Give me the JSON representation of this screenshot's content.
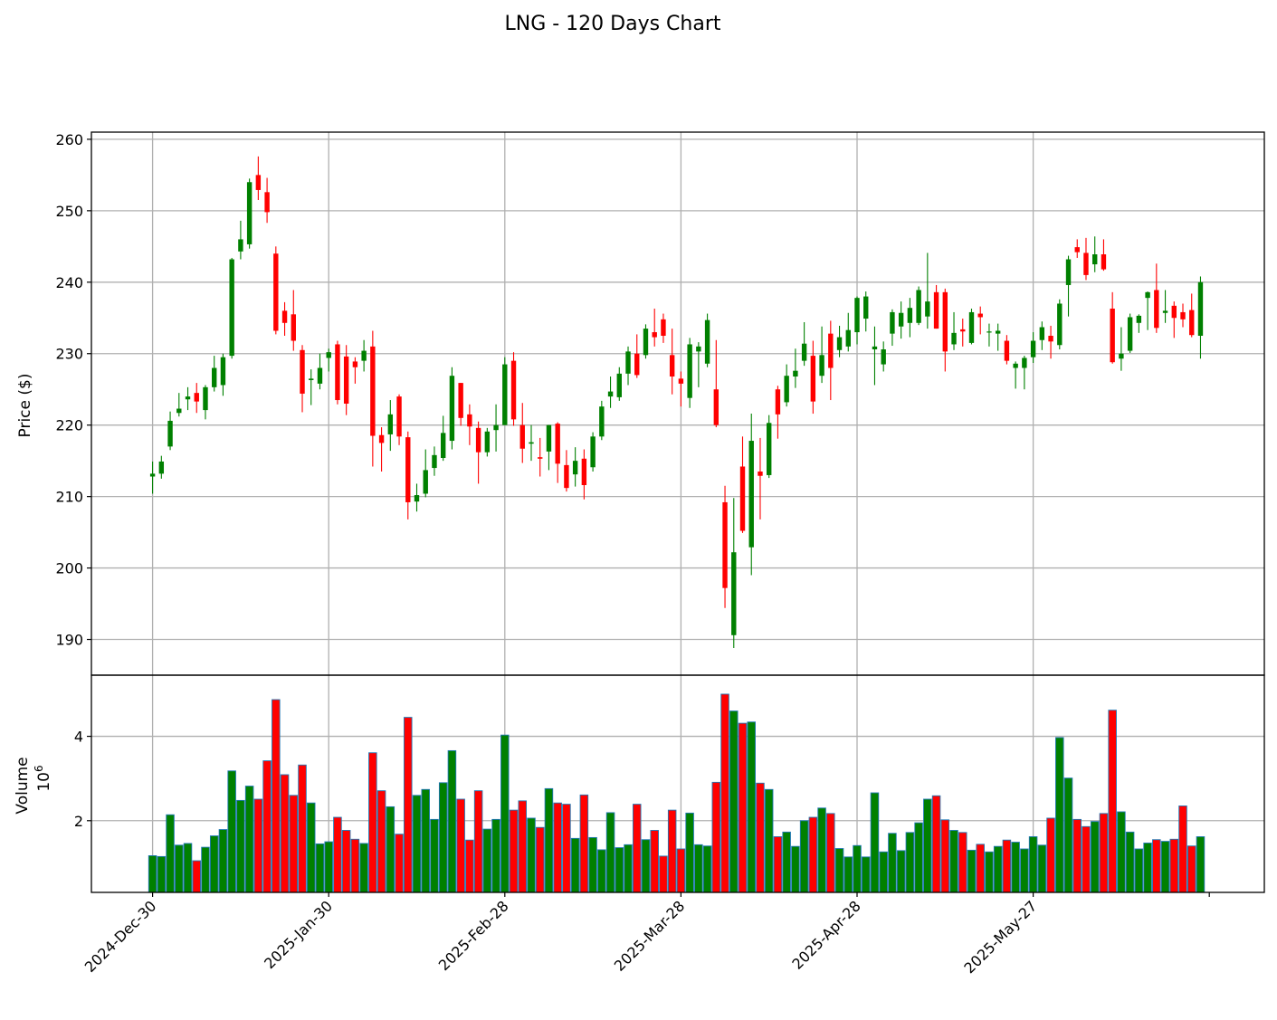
{
  "chart_data": {
    "type": "candlestick",
    "title": "LNG - 120 Days Chart",
    "colors": {
      "up": "#008000",
      "down": "#ff0000",
      "volume_edge": "#1f77b4"
    },
    "grid": true,
    "price_panel": {
      "ylabel": "Price ($)",
      "ylim": [
        185,
        261
      ],
      "yticks": [
        190,
        200,
        210,
        220,
        230,
        240,
        250,
        260
      ]
    },
    "volume_panel": {
      "ylabel": "Volume",
      "scale_label": "10^6",
      "ylim": [
        0.3,
        5.45
      ],
      "yticks": [
        2,
        4
      ]
    },
    "x_ticks": [
      {
        "index": 0,
        "label": "2024-Dec-30"
      },
      {
        "index": 20,
        "label": "2025-Jan-30"
      },
      {
        "index": 40,
        "label": "2025-Feb-28"
      },
      {
        "index": 60,
        "label": "2025-Mar-28"
      },
      {
        "index": 80,
        "label": "2025-Apr-28"
      },
      {
        "index": 100,
        "label": "2025-May-27"
      }
    ],
    "ohlc": [
      [
        212.8,
        214.9,
        210.4,
        213.2
      ],
      [
        213.2,
        215.7,
        212.5,
        214.9
      ],
      [
        217.0,
        221.9,
        216.5,
        220.6
      ],
      [
        221.7,
        224.5,
        221.2,
        222.3
      ],
      [
        223.6,
        225.3,
        222.1,
        224.0
      ],
      [
        224.5,
        225.9,
        221.7,
        223.3
      ],
      [
        222.1,
        225.6,
        220.8,
        225.3
      ],
      [
        225.3,
        229.7,
        224.7,
        228.0
      ],
      [
        225.6,
        230.0,
        224.1,
        229.5
      ],
      [
        229.7,
        243.4,
        229.3,
        243.2
      ],
      [
        244.3,
        248.6,
        243.2,
        246.0
      ],
      [
        245.3,
        254.5,
        244.7,
        254.0
      ],
      [
        255.0,
        257.6,
        251.5,
        252.9
      ],
      [
        252.6,
        254.6,
        248.3,
        249.8
      ],
      [
        244.0,
        245.0,
        232.7,
        233.2
      ],
      [
        236.0,
        237.2,
        232.5,
        234.3
      ],
      [
        235.5,
        238.9,
        230.4,
        231.8
      ],
      [
        230.5,
        231.2,
        221.8,
        224.4
      ],
      [
        226.3,
        227.8,
        222.8,
        226.5
      ],
      [
        225.8,
        230.0,
        225.0,
        228.0
      ],
      [
        229.4,
        230.7,
        227.5,
        230.2
      ],
      [
        231.3,
        231.8,
        222.9,
        223.5
      ],
      [
        229.6,
        231.2,
        221.4,
        223.0
      ],
      [
        228.9,
        229.5,
        225.8,
        228.1
      ],
      [
        229.0,
        231.9,
        227.5,
        230.4
      ],
      [
        231.0,
        233.2,
        214.2,
        218.5
      ],
      [
        218.6,
        219.7,
        213.5,
        217.5
      ],
      [
        218.7,
        223.5,
        216.4,
        221.5
      ],
      [
        224.0,
        224.3,
        217.2,
        218.4
      ],
      [
        218.3,
        219.1,
        206.8,
        209.2
      ],
      [
        209.3,
        211.8,
        207.9,
        210.2
      ],
      [
        210.4,
        216.6,
        209.9,
        213.7
      ],
      [
        214.0,
        217.0,
        212.9,
        215.8
      ],
      [
        215.4,
        221.3,
        215.0,
        218.9
      ],
      [
        217.8,
        228.1,
        216.6,
        226.9
      ],
      [
        225.9,
        225.9,
        219.9,
        221.0
      ],
      [
        221.5,
        222.9,
        217.2,
        219.8
      ],
      [
        219.6,
        220.5,
        211.8,
        216.2
      ],
      [
        216.2,
        219.6,
        215.6,
        219.1
      ],
      [
        219.3,
        222.9,
        216.3,
        220.0
      ],
      [
        220.0,
        229.5,
        220.0,
        228.5
      ],
      [
        229.0,
        230.2,
        219.9,
        220.8
      ],
      [
        220.0,
        223.1,
        214.7,
        216.7
      ],
      [
        217.4,
        220.0,
        215.0,
        217.6
      ],
      [
        215.5,
        218.2,
        212.8,
        215.3
      ],
      [
        216.3,
        220.0,
        213.7,
        220.0
      ],
      [
        220.2,
        220.4,
        211.9,
        214.6
      ],
      [
        214.4,
        216.5,
        210.7,
        211.2
      ],
      [
        213.1,
        216.9,
        211.4,
        215.0
      ],
      [
        215.3,
        216.6,
        209.6,
        211.6
      ],
      [
        214.1,
        219.0,
        213.5,
        218.4
      ],
      [
        218.4,
        223.4,
        217.9,
        222.6
      ],
      [
        224.0,
        226.8,
        222.4,
        224.7
      ],
      [
        223.9,
        228.1,
        223.4,
        227.2
      ],
      [
        227.2,
        231.0,
        225.6,
        230.3
      ],
      [
        230.0,
        232.7,
        226.6,
        227.0
      ],
      [
        229.8,
        234.1,
        229.3,
        233.5
      ],
      [
        233.0,
        236.3,
        231.0,
        232.3
      ],
      [
        234.8,
        235.6,
        231.5,
        232.5
      ],
      [
        229.8,
        233.5,
        224.3,
        226.8
      ],
      [
        226.5,
        227.5,
        222.6,
        225.8
      ],
      [
        223.8,
        232.2,
        222.4,
        231.3
      ],
      [
        230.3,
        231.6,
        225.3,
        231.0
      ],
      [
        228.6,
        235.6,
        228.1,
        234.7
      ],
      [
        225.0,
        231.9,
        219.7,
        220.0
      ],
      [
        209.2,
        211.5,
        194.4,
        197.2
      ],
      [
        190.6,
        209.8,
        188.8,
        202.2
      ],
      [
        214.2,
        218.4,
        204.9,
        205.2
      ],
      [
        202.9,
        221.6,
        199.0,
        217.8
      ],
      [
        213.5,
        218.2,
        206.8,
        212.9
      ],
      [
        213.0,
        221.4,
        212.6,
        220.3
      ],
      [
        225.0,
        225.5,
        218.1,
        221.5
      ],
      [
        223.2,
        228.5,
        222.6,
        226.9
      ],
      [
        226.8,
        230.7,
        225.2,
        227.6
      ],
      [
        229.0,
        234.4,
        228.3,
        231.4
      ],
      [
        229.7,
        231.8,
        221.6,
        223.3
      ],
      [
        226.9,
        233.8,
        225.9,
        229.8
      ],
      [
        232.8,
        234.6,
        223.5,
        228.0
      ],
      [
        230.5,
        233.9,
        229.5,
        232.3
      ],
      [
        231.0,
        235.7,
        230.3,
        233.3
      ],
      [
        233.0,
        238.0,
        231.3,
        237.8
      ],
      [
        234.9,
        238.7,
        233.1,
        238.0
      ],
      [
        230.6,
        233.8,
        225.6,
        231.0
      ],
      [
        228.5,
        231.7,
        227.5,
        230.6
      ],
      [
        232.8,
        236.2,
        231.1,
        235.8
      ],
      [
        233.8,
        237.3,
        232.1,
        235.7
      ],
      [
        234.3,
        237.8,
        232.3,
        236.4
      ],
      [
        234.3,
        239.4,
        234.0,
        238.9
      ],
      [
        235.2,
        244.1,
        233.5,
        237.3
      ],
      [
        238.6,
        239.6,
        233.5,
        233.5
      ],
      [
        238.6,
        239.1,
        227.5,
        230.3
      ],
      [
        231.3,
        235.8,
        230.5,
        232.9
      ],
      [
        233.4,
        234.9,
        231.0,
        233.1
      ],
      [
        231.5,
        236.3,
        231.3,
        235.8
      ],
      [
        235.6,
        236.6,
        232.7,
        235.1
      ],
      [
        233.0,
        234.2,
        231.0,
        233.1
      ],
      [
        232.8,
        234.2,
        230.4,
        233.2
      ],
      [
        231.8,
        232.6,
        228.5,
        229.0
      ],
      [
        228.0,
        228.9,
        225.1,
        228.6
      ],
      [
        228.0,
        229.7,
        225.0,
        229.4
      ],
      [
        229.5,
        233.0,
        228.7,
        231.8
      ],
      [
        231.9,
        234.5,
        230.5,
        233.7
      ],
      [
        232.5,
        233.9,
        229.3,
        231.7
      ],
      [
        231.2,
        237.6,
        230.6,
        237.0
      ],
      [
        239.6,
        243.7,
        235.2,
        243.2
      ],
      [
        244.9,
        246.0,
        243.4,
        244.2
      ],
      [
        244.1,
        246.2,
        240.3,
        241.0
      ],
      [
        242.5,
        246.4,
        241.4,
        243.9
      ],
      [
        243.9,
        246.0,
        241.6,
        241.8
      ],
      [
        236.3,
        238.6,
        228.6,
        228.8
      ],
      [
        229.3,
        233.7,
        227.6,
        230.0
      ],
      [
        230.4,
        235.6,
        230.1,
        235.1
      ],
      [
        234.3,
        235.5,
        232.9,
        235.3
      ],
      [
        237.8,
        238.7,
        233.3,
        238.6
      ],
      [
        238.9,
        242.6,
        232.9,
        233.6
      ],
      [
        235.7,
        238.9,
        234.3,
        236.0
      ],
      [
        236.7,
        237.3,
        232.2,
        235.0
      ],
      [
        235.8,
        237.0,
        233.7,
        234.8
      ],
      [
        236.1,
        238.4,
        232.3,
        232.6
      ],
      [
        232.5,
        240.8,
        229.3,
        240.0
      ]
    ],
    "volume_millions": [
      1.17,
      1.15,
      2.14,
      1.42,
      1.46,
      1.05,
      1.37,
      1.64,
      1.79,
      3.18,
      2.48,
      2.82,
      2.51,
      3.42,
      4.87,
      3.09,
      2.6,
      3.32,
      2.42,
      1.45,
      1.5,
      2.08,
      1.77,
      1.56,
      1.46,
      3.61,
      2.71,
      2.33,
      1.68,
      4.45,
      2.6,
      2.74,
      2.03,
      2.9,
      3.66,
      2.51,
      1.54,
      2.71,
      1.8,
      2.03,
      4.03,
      2.25,
      2.47,
      2.06,
      1.84,
      2.76,
      2.42,
      2.39,
      1.58,
      2.61,
      1.6,
      1.31,
      2.19,
      1.36,
      1.43,
      2.39,
      1.55,
      1.77,
      1.16,
      2.25,
      1.33,
      2.18,
      1.43,
      1.4,
      2.91,
      5.0,
      4.6,
      4.31,
      4.34,
      2.89,
      2.74,
      1.62,
      1.73,
      1.39,
      2.0,
      2.08,
      2.3,
      2.17,
      1.34,
      1.14,
      1.41,
      1.14,
      2.66,
      1.26,
      1.7,
      1.29,
      1.72,
      1.95,
      2.51,
      2.59,
      2.02,
      1.77,
      1.72,
      1.3,
      1.44,
      1.26,
      1.39,
      1.54,
      1.49,
      1.33,
      1.62,
      1.42,
      2.06,
      3.97,
      3.01,
      2.03,
      1.86,
      1.98,
      2.17,
      4.62,
      2.21,
      1.73,
      1.33,
      1.47,
      1.55,
      1.51,
      1.56,
      2.35,
      1.4,
      1.62
    ]
  }
}
